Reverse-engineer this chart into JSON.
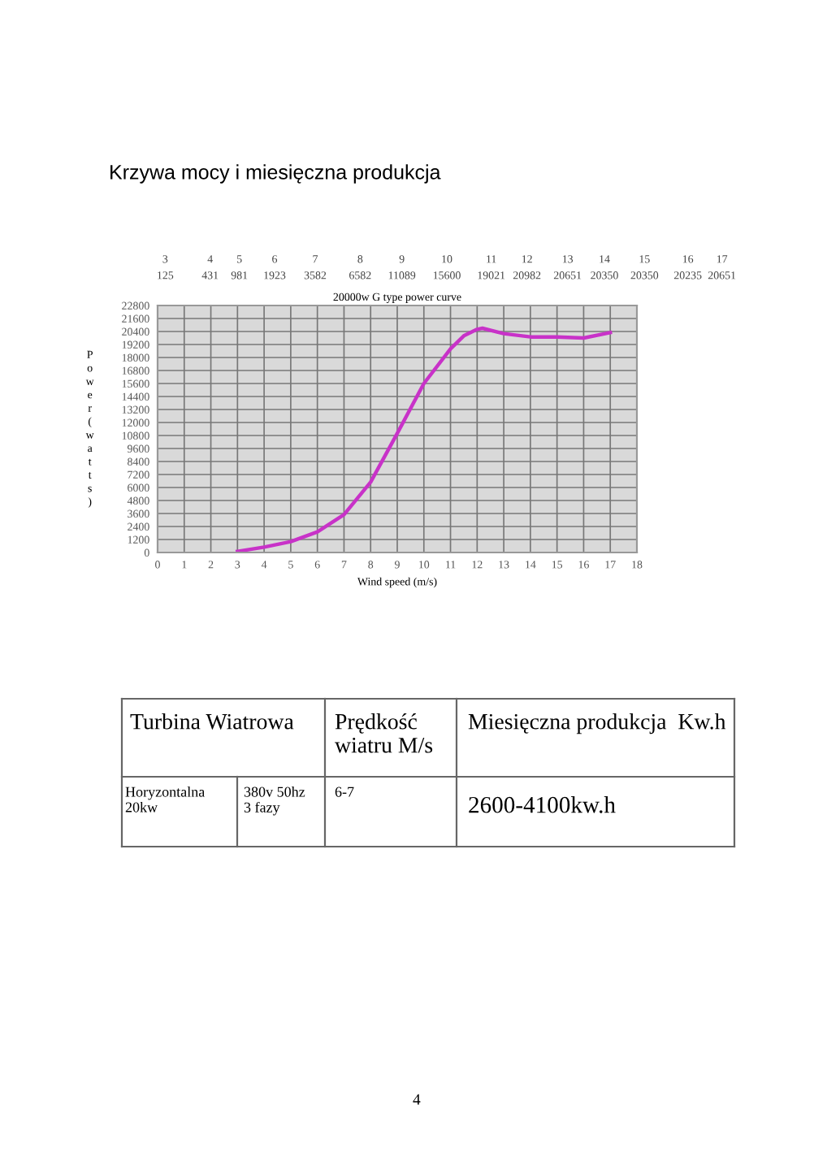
{
  "chart_data": {
    "type": "line",
    "title": "Krzywa mocy i miesięczna produkcja",
    "subtitle": "20000w G type power curve",
    "xlabel": "Wind speed (m/s)",
    "ylabel": "Power(watts)",
    "x": [
      3,
      4,
      5,
      6,
      7,
      8,
      9,
      10,
      11,
      11.5,
      12,
      12.2,
      13,
      14,
      15,
      16,
      17
    ],
    "series": [
      {
        "color": "#c832c8",
        "values": [
          100,
          500,
          1000,
          1900,
          3500,
          6500,
          11000,
          15600,
          18800,
          20000,
          20600,
          20700,
          20200,
          19900,
          19900,
          19800,
          20300
        ]
      }
    ],
    "xlim": [
      0,
      18
    ],
    "xticks": [
      0,
      1,
      2,
      3,
      4,
      5,
      6,
      7,
      8,
      9,
      10,
      11,
      12,
      13,
      14,
      15,
      16,
      17,
      18
    ],
    "ylim": [
      0,
      22800
    ],
    "yticks": [
      0,
      1200,
      2400,
      3600,
      4800,
      6000,
      7200,
      8400,
      9600,
      10800,
      12000,
      13200,
      14400,
      15600,
      16800,
      18000,
      19200,
      20400,
      21600,
      22800
    ],
    "grid": true,
    "marker": "none",
    "line_style": "solid",
    "annotations": [
      "3",
      "4",
      "5",
      "6",
      "7",
      "8",
      "9",
      "10",
      "11",
      "12",
      "13",
      "14",
      "15",
      "16",
      "17",
      "125",
      "431",
      "981",
      "1923",
      "3582",
      "6582",
      "11089",
      "15600",
      "19021",
      "20982",
      "20651",
      "20350",
      "20350",
      "20235",
      "20651",
      "Turbina Wiatrowa",
      "Prędkość\nwiatru M/s",
      "Miesięczna produkcja  Kw.h",
      "Horyzontalna\n20kw",
      "380v 50hz\n3 fazy",
      "6-7",
      "2600-4100kw.h",
      "4"
    ]
  }
}
